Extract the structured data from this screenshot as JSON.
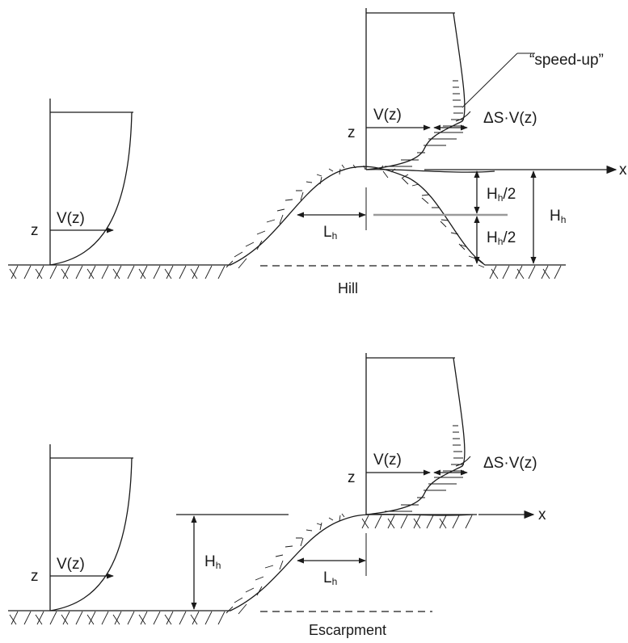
{
  "hill": {
    "caption": "Hill",
    "approach_profile": {
      "z_label": "z",
      "v_label": "V(z)"
    },
    "crest_profile": {
      "z_label": "z",
      "v_label": "V(z)",
      "delta_label": "ΔS·V(z)"
    },
    "speedup_label": "“speed-up”",
    "x_label": "x",
    "half_height_upper": {
      "main": "H",
      "sub": "h",
      "suffix": "/2"
    },
    "half_height_lower": {
      "main": "H",
      "sub": "h",
      "suffix": "/2"
    },
    "height": {
      "main": "H",
      "sub": "h"
    },
    "half_length": {
      "main": "L",
      "sub": "h"
    }
  },
  "escarpment": {
    "caption": "Escarpment",
    "approach_profile": {
      "z_label": "z",
      "v_label": "V(z)"
    },
    "crest_profile": {
      "z_label": "z",
      "v_label": "V(z)",
      "delta_label": "ΔS·V(z)"
    },
    "x_label": "x",
    "height": {
      "main": "H",
      "sub": "h"
    },
    "half_length": {
      "main": "L",
      "sub": "h"
    }
  }
}
